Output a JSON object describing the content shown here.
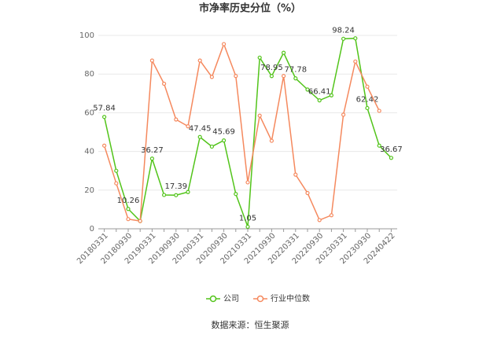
{
  "chart_data": {
    "type": "line",
    "title": "市净率历史分位（%）",
    "categories": [
      "20180331",
      null,
      "20180930",
      null,
      "20190331",
      null,
      "20190930",
      null,
      "20200331",
      null,
      "20200930",
      null,
      "20210331",
      null,
      "20210930",
      null,
      "20220331",
      null,
      "20220930",
      null,
      "20230331",
      null,
      "20230930",
      null,
      "20240422"
    ],
    "series": [
      {
        "name": "公司",
        "color": "#52c41a",
        "values": [
          57.84,
          30,
          10.26,
          4,
          36.27,
          17.5,
          17.39,
          19,
          47.45,
          42.5,
          45.69,
          18,
          1.05,
          88.5,
          78.95,
          91,
          77.78,
          72,
          66.41,
          69,
          98.24,
          98.5,
          62.42,
          43,
          36.67
        ]
      },
      {
        "name": "行业中位数",
        "color": "#f5895e",
        "values": [
          43,
          23.5,
          5,
          4,
          87,
          75,
          56.5,
          53,
          87,
          78.5,
          95.5,
          79,
          24,
          58.5,
          45.5,
          79,
          28,
          18.5,
          4.5,
          7,
          59,
          86.5,
          73.5,
          61,
          null
        ]
      }
    ],
    "ylim": [
      0,
      100
    ],
    "yticks": [
      0,
      20,
      40,
      60,
      80,
      100
    ],
    "grid": true,
    "legend": "bottom",
    "source": "数据来源：恒生聚源"
  }
}
